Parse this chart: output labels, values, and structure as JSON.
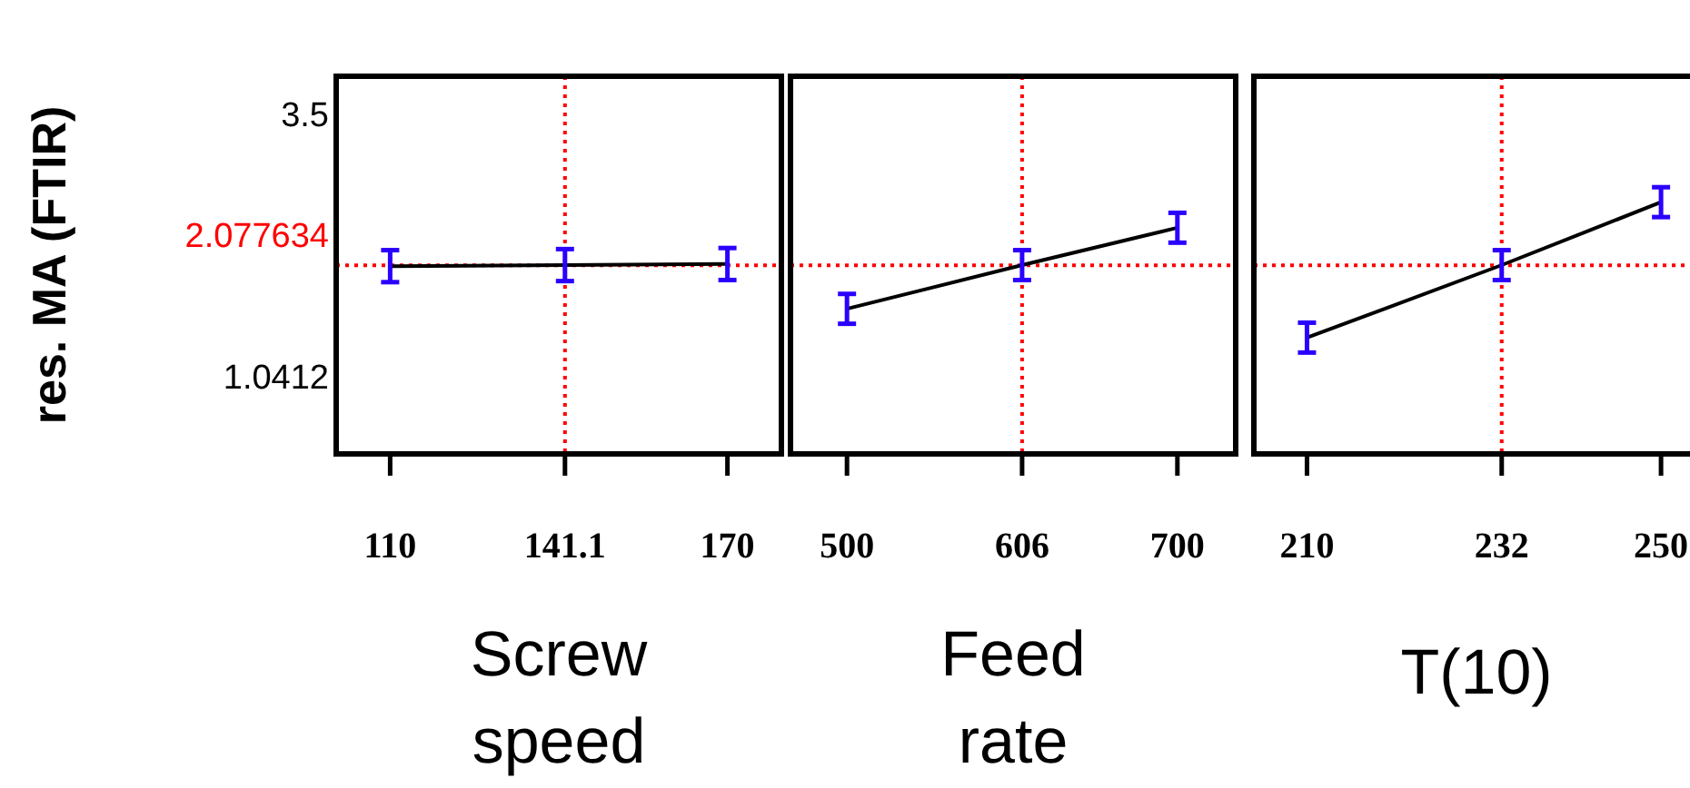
{
  "chart_data": [
    {
      "type": "line",
      "ylabel": "res. MA (FTIR)",
      "xlabel": "Screw speed",
      "x": [
        110,
        141.1,
        170
      ],
      "xlim": [
        100.4,
        179.6
      ],
      "xticks": [
        110,
        141.1,
        170
      ],
      "ylim": [
        0.31,
        3.85
      ],
      "yticks": [
        1.0412,
        3.5
      ],
      "series": [
        {
          "color": "#000000",
          "values": [
            2.07,
            2.08,
            2.09
          ],
          "errors": [
            0.15,
            0.15,
            0.15
          ]
        }
      ],
      "ref_lines": [
        {
          "axis": "y",
          "value": 2.077634,
          "label": "2.077634",
          "color": "#ff0000",
          "line_style": "dotted"
        },
        {
          "axis": "x",
          "value": 141.1,
          "color": "#ff0000",
          "line_style": "dotted"
        }
      ],
      "grid": false
    },
    {
      "type": "line",
      "xlabel": "Feed rate",
      "x": [
        500,
        606,
        700
      ],
      "xlim": [
        465.8,
        735.3
      ],
      "xticks": [
        500,
        606,
        700
      ],
      "ylim": [
        0.31,
        3.85
      ],
      "tick_labels": "x",
      "series": [
        {
          "color": "#000000",
          "values": [
            1.67,
            2.08,
            2.43
          ],
          "errors": [
            0.14,
            0.14,
            0.14
          ]
        }
      ],
      "ref_lines": [
        {
          "axis": "y",
          "value": 2.077634,
          "color": "#ff0000",
          "line_style": "dotted"
        },
        {
          "axis": "x",
          "value": 606,
          "color": "#ff0000",
          "line_style": "dotted"
        }
      ],
      "grid": false
    },
    {
      "type": "line",
      "xlabel": "T(10)",
      "x": [
        210,
        232,
        250
      ],
      "xlim": [
        204,
        254.3
      ],
      "xticks": [
        210,
        232,
        250
      ],
      "ylim": [
        0.31,
        3.85
      ],
      "tick_labels": "x",
      "series": [
        {
          "color": "#000000",
          "values": [
            1.4,
            2.08,
            2.67
          ],
          "errors": [
            0.14,
            0.14,
            0.14
          ]
        }
      ],
      "ref_lines": [
        {
          "axis": "y",
          "value": 2.077634,
          "color": "#ff0000",
          "line_style": "dotted"
        },
        {
          "axis": "x",
          "value": 232,
          "color": "#ff0000",
          "line_style": "dotted"
        }
      ],
      "grid": false
    }
  ]
}
